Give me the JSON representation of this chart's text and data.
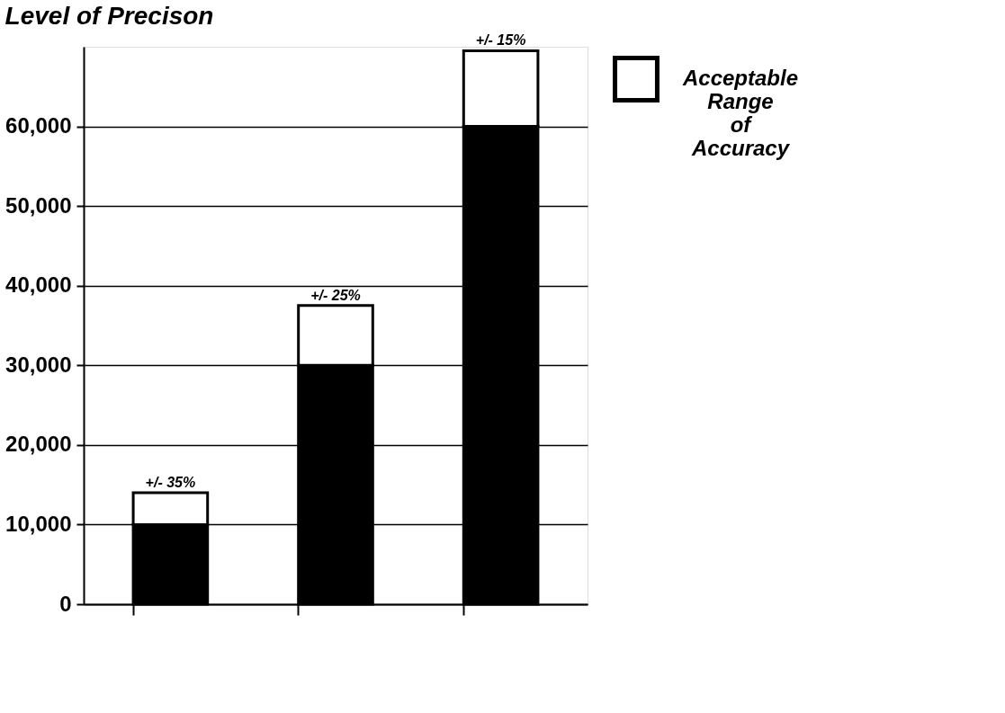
{
  "chart_data": {
    "type": "bar",
    "title": "Level of Precison",
    "stacked": true,
    "categories": [
      null,
      null,
      null
    ],
    "series": [
      {
        "color": "#000000",
        "values": [
          10000,
          30000,
          60000
        ]
      },
      {
        "name": "Acceptable Range of Accuracy",
        "color": "#ffffff",
        "values": [
          4000,
          7500,
          9500
        ]
      }
    ],
    "ylim": [
      0,
      70000
    ],
    "yticks": [
      0,
      {
        "value": 10000,
        "label": "10,000"
      },
      {
        "value": 20000,
        "label": "20,000"
      },
      {
        "value": 30000,
        "label": "30,000"
      },
      {
        "value": 40000,
        "label": "40,000"
      },
      {
        "value": 50000,
        "label": "50,000"
      },
      {
        "value": 60000,
        "label": "60,000"
      }
    ],
    "grid": "y",
    "legend": "right",
    "annotations": [
      {
        "text": "+/- 35%",
        "y": 14000
      },
      {
        "text": "+/- 25%",
        "y": 37500
      },
      {
        "text": "+/- 15%",
        "y": 69500
      }
    ]
  }
}
